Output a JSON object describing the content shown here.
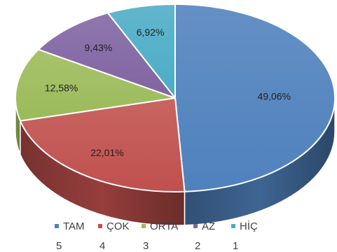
{
  "chart_data": {
    "type": "pie",
    "three_d": true,
    "legend_position": "bottom",
    "slices": [
      {
        "label": "TAM",
        "code": "5",
        "value": 49.06,
        "value_label": "49,06%",
        "color": "#4f81bd"
      },
      {
        "label": "ÇOK",
        "code": "4",
        "value": 22.01,
        "value_label": "22,01%",
        "color": "#c0504d"
      },
      {
        "label": "ORTA",
        "code": "3",
        "value": 12.58,
        "value_label": "12,58%",
        "color": "#9bbb59"
      },
      {
        "label": "AZ",
        "code": "2",
        "value": 9.43,
        "value_label": "9,43%",
        "color": "#8064a2"
      },
      {
        "label": "HİÇ",
        "code": "1",
        "value": 6.92,
        "value_label": "6,92%",
        "color": "#4bacc6"
      }
    ]
  }
}
